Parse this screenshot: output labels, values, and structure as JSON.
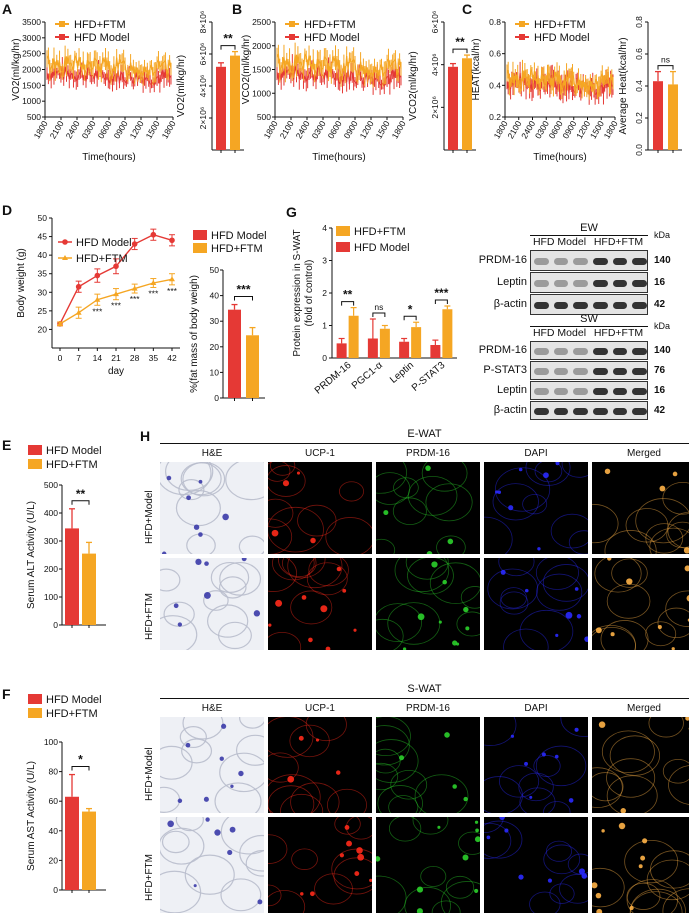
{
  "panels": {
    "A": "A",
    "B": "B",
    "C": "C",
    "D": "D",
    "E": "E",
    "F": "F",
    "G": "G",
    "H": "H"
  },
  "colors": {
    "model": "#e53935",
    "ftm": "#f5a623",
    "dapi": "#2a2aff",
    "ucp": "#ff2a1a",
    "prdm": "#2bd02b",
    "merged": "#ffb347",
    "he_bg": "#eef0f5",
    "he_stain": "#3a3aa8"
  },
  "legend": {
    "ftm": "HFD+FTM",
    "model": "HFD Model"
  },
  "time_chart": {
    "xlabel": "Time(hours)",
    "xticks": [
      "1800",
      "2100",
      "2400",
      "0300",
      "0600",
      "0900",
      "1200",
      "1500",
      "1800"
    ]
  },
  "chart_data": [
    {
      "id": "A-line",
      "type": "line",
      "title": "",
      "ylabel": "VO2(ml/kg/hr)",
      "ylim": [
        500,
        3500
      ],
      "yticks": [
        500,
        1000,
        1500,
        2000,
        2500,
        3000,
        3500
      ],
      "ytick_labels": [
        "500",
        "1000",
        "1500",
        "2000",
        "2500",
        "3000",
        "3500"
      ],
      "series": [
        {
          "name": "HFD+FTM",
          "base": 2200,
          "amp": 600
        },
        {
          "name": "HFD Model",
          "base": 1900,
          "amp": 500
        }
      ]
    },
    {
      "id": "A-bar",
      "type": "bar",
      "ylabel": "VO2(ml/kg/hr)",
      "ylim": [
        0,
        8000000
      ],
      "yticks": [
        2000000,
        4000000,
        6000000,
        8000000
      ],
      "ytick_labels": [
        "2×10⁶",
        "4×10⁶",
        "6×10⁶",
        "8×10⁶"
      ],
      "categories": [
        "HFD Model",
        "HFD+FTM"
      ],
      "values": [
        5200000,
        5900000
      ],
      "errors": [
        250000,
        250000
      ],
      "significance": "**"
    },
    {
      "id": "B-line",
      "type": "line",
      "ylabel": "VCO2(ml/kg/hr)",
      "ylim": [
        500,
        2500
      ],
      "yticks": [
        500,
        1000,
        1500,
        2000,
        2500
      ],
      "ytick_labels": [
        "500",
        "1000",
        "1500",
        "2000",
        "2500"
      ],
      "series": [
        {
          "name": "HFD+FTM",
          "base": 1650,
          "amp": 450
        },
        {
          "name": "HFD Model",
          "base": 1450,
          "amp": 380
        }
      ]
    },
    {
      "id": "B-bar",
      "type": "bar",
      "ylabel": "VCO2(ml/kg/hr)",
      "ylim": [
        0,
        6000000
      ],
      "yticks": [
        2000000,
        4000000,
        6000000
      ],
      "ytick_labels": [
        "2×10⁶",
        "4×10⁶",
        "6×10⁶"
      ],
      "categories": [
        "HFD Model",
        "HFD+FTM"
      ],
      "values": [
        3900000,
        4300000
      ],
      "errors": [
        150000,
        150000
      ],
      "significance": "**"
    },
    {
      "id": "C-line",
      "type": "line",
      "ylabel": "HEAT(kcal/hr)",
      "ylim": [
        0.2,
        0.8
      ],
      "yticks": [
        0.2,
        0.4,
        0.6,
        0.8
      ],
      "ytick_labels": [
        "0.2",
        "0.4",
        "0.6",
        "0.8"
      ],
      "series": [
        {
          "name": "HFD+FTM",
          "base": 0.45,
          "amp": 0.12
        },
        {
          "name": "HFD Model",
          "base": 0.43,
          "amp": 0.12
        }
      ]
    },
    {
      "id": "C-bar",
      "type": "bar",
      "ylabel": "Average Heat(kcal/hr)",
      "ylim": [
        0,
        0.8
      ],
      "yticks": [
        0.0,
        0.2,
        0.4,
        0.6,
        0.8
      ],
      "ytick_labels": [
        "0.0",
        "0.2",
        "0.4",
        "0.6",
        "0.8"
      ],
      "categories": [
        "HFD Model",
        "HFD+FTM"
      ],
      "values": [
        0.43,
        0.41
      ],
      "errors": [
        0.06,
        0.08
      ],
      "significance": "ns"
    },
    {
      "id": "D-line",
      "type": "line",
      "xlabel": "day",
      "ylabel": "Body weight (g)",
      "ylim": [
        15,
        50
      ],
      "yticks": [
        20,
        25,
        30,
        35,
        40,
        45,
        50
      ],
      "ytick_labels": [
        "20",
        "25",
        "30",
        "35",
        "40",
        "45",
        "50"
      ],
      "x": [
        0,
        7,
        14,
        21,
        28,
        35,
        42
      ],
      "xtick_labels": [
        "0",
        "7",
        "14",
        "21",
        "28",
        "35",
        "42"
      ],
      "series": [
        {
          "name": "HFD Model",
          "values": [
            21.5,
            31.5,
            34.5,
            37,
            43,
            45.5,
            44
          ],
          "errors": [
            0.5,
            1.5,
            1.8,
            2,
            1.5,
            1.5,
            1.5
          ]
        },
        {
          "name": "HFD+FTM",
          "values": [
            21.5,
            24.5,
            28,
            29.5,
            31,
            32.5,
            33.5
          ],
          "errors": [
            0.5,
            1.5,
            1.5,
            1.5,
            1.2,
            1.2,
            1.5
          ]
        }
      ],
      "point_sig": [
        "",
        "",
        "***",
        "***",
        "***",
        "***",
        "***"
      ]
    },
    {
      "id": "D-bar",
      "type": "bar",
      "ylabel": "%(fat mass of body weigh)",
      "ylim": [
        0,
        50
      ],
      "yticks": [
        0,
        10,
        20,
        30,
        40,
        50
      ],
      "ytick_labels": [
        "0",
        "10",
        "20",
        "30",
        "40",
        "50"
      ],
      "categories": [
        "HFD Model",
        "HFD+FTM"
      ],
      "values": [
        34.5,
        24.5
      ],
      "errors": [
        2,
        3
      ],
      "significance": "***"
    },
    {
      "id": "G-bar",
      "type": "bar",
      "ylabel": "Protein expression in S-WAT",
      "ylabel2": "(fold of control)",
      "ylim": [
        0,
        4
      ],
      "yticks": [
        0,
        1,
        2,
        3,
        4
      ],
      "ytick_labels": [
        "0",
        "1",
        "2",
        "3",
        "4"
      ],
      "categories": [
        "PRDM-16",
        "PGC1-α",
        "Leptin",
        "P-STAT3"
      ],
      "series": [
        {
          "name": "HFD Model",
          "values": [
            0.45,
            0.6,
            0.5,
            0.4
          ],
          "errors": [
            0.15,
            0.6,
            0.1,
            0.15
          ]
        },
        {
          "name": "HFD+FTM",
          "values": [
            1.3,
            0.9,
            0.95,
            1.5
          ],
          "errors": [
            0.25,
            0.1,
            0.15,
            0.1
          ]
        }
      ],
      "significance": [
        "**",
        "ns",
        "*",
        "***"
      ]
    },
    {
      "id": "E-bar",
      "type": "bar",
      "ylabel": "Serum ALT Activity (U/L)",
      "ylim": [
        0,
        500
      ],
      "yticks": [
        0,
        100,
        200,
        300,
        400,
        500
      ],
      "ytick_labels": [
        "0",
        "100",
        "200",
        "300",
        "400",
        "500"
      ],
      "categories": [
        "HFD Model",
        "HFD+FTM"
      ],
      "values": [
        345,
        255
      ],
      "errors": [
        70,
        40
      ],
      "significance": "**"
    },
    {
      "id": "F-bar",
      "type": "bar",
      "ylabel": "Serum AST Activity (U/L)",
      "ylim": [
        0,
        100
      ],
      "yticks": [
        0,
        20,
        40,
        60,
        80,
        100
      ],
      "ytick_labels": [
        "0",
        "20",
        "40",
        "60",
        "80",
        "100"
      ],
      "categories": [
        "HFD Model",
        "HFD+FTM"
      ],
      "values": [
        63,
        53
      ],
      "errors": [
        15,
        2
      ],
      "significance": "*"
    }
  ],
  "western": {
    "ew": {
      "title": "EW",
      "groups": [
        "HFD Model",
        "HFD+FTM"
      ],
      "kda_header": "kDa",
      "rows": [
        {
          "label": "PRDM-16",
          "kda": "140"
        },
        {
          "label": "Leptin",
          "kda": "16"
        },
        {
          "label": "β-actin",
          "kda": "42"
        }
      ]
    },
    "sw": {
      "title": "SW",
      "groups": [
        "HFD Model",
        "HFD+FTM"
      ],
      "kda_header": "kDa",
      "rows": [
        {
          "label": "PRDM-16",
          "kda": "140"
        },
        {
          "label": "P-STAT3",
          "kda": "76"
        },
        {
          "label": "Leptin",
          "kda": "16"
        },
        {
          "label": "β-actin",
          "kda": "42"
        }
      ]
    }
  },
  "micro": {
    "columns": [
      "H&E",
      "UCP-1",
      "PRDM-16",
      "DAPI",
      "Merged"
    ],
    "ewat": {
      "title": "E-WAT",
      "rows": [
        "HFD+Model",
        "HFD+FTM"
      ]
    },
    "swat": {
      "title": "S-WAT",
      "rows": [
        "HFD+Model",
        "HFD+FTM"
      ]
    }
  }
}
